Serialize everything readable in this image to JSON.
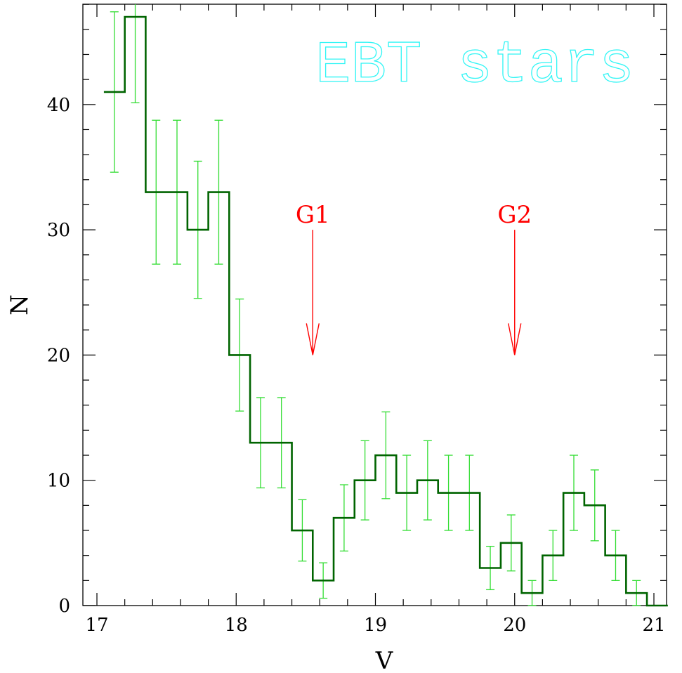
{
  "chart_data": {
    "type": "histogram",
    "title": "EBT stars",
    "xlabel": "V",
    "ylabel": "N",
    "xlim": [
      16.95,
      21.2
    ],
    "ylim": [
      0,
      48
    ],
    "x_ticks": [
      "17",
      "18",
      "19",
      "20",
      "21"
    ],
    "y_ticks": [
      "0",
      "10",
      "20",
      "30",
      "40"
    ],
    "bin_width": 0.15,
    "bins": [
      {
        "x_start": 17.05,
        "x_end": 17.2,
        "count": 41
      },
      {
        "x_start": 17.2,
        "x_end": 17.35,
        "count": 47
      },
      {
        "x_start": 17.35,
        "x_end": 17.5,
        "count": 33
      },
      {
        "x_start": 17.5,
        "x_end": 17.65,
        "count": 33
      },
      {
        "x_start": 17.65,
        "x_end": 17.8,
        "count": 30
      },
      {
        "x_start": 17.8,
        "x_end": 17.95,
        "count": 33
      },
      {
        "x_start": 17.95,
        "x_end": 18.1,
        "count": 20
      },
      {
        "x_start": 18.1,
        "x_end": 18.25,
        "count": 13
      },
      {
        "x_start": 18.25,
        "x_end": 18.4,
        "count": 13
      },
      {
        "x_start": 18.4,
        "x_end": 18.55,
        "count": 6
      },
      {
        "x_start": 18.55,
        "x_end": 18.7,
        "count": 2
      },
      {
        "x_start": 18.7,
        "x_end": 18.85,
        "count": 7
      },
      {
        "x_start": 18.85,
        "x_end": 19.0,
        "count": 10
      },
      {
        "x_start": 19.0,
        "x_end": 19.15,
        "count": 12
      },
      {
        "x_start": 19.15,
        "x_end": 19.3,
        "count": 9
      },
      {
        "x_start": 19.3,
        "x_end": 19.45,
        "count": 10
      },
      {
        "x_start": 19.45,
        "x_end": 19.6,
        "count": 9
      },
      {
        "x_start": 19.6,
        "x_end": 19.75,
        "count": 9
      },
      {
        "x_start": 19.75,
        "x_end": 19.9,
        "count": 3
      },
      {
        "x_start": 19.9,
        "x_end": 20.05,
        "count": 5
      },
      {
        "x_start": 20.05,
        "x_end": 20.2,
        "count": 1
      },
      {
        "x_start": 20.2,
        "x_end": 20.35,
        "count": 4
      },
      {
        "x_start": 20.35,
        "x_end": 20.5,
        "count": 9
      },
      {
        "x_start": 20.5,
        "x_end": 20.65,
        "count": 8
      },
      {
        "x_start": 20.65,
        "x_end": 20.8,
        "count": 4
      },
      {
        "x_start": 20.8,
        "x_end": 20.95,
        "count": 1
      },
      {
        "x_start": 20.95,
        "x_end": 21.1,
        "count": 0
      }
    ],
    "error_bars": "sqrt(N)",
    "annotations": [
      {
        "label": "G1",
        "x": 18.55,
        "arrow_from_y": 30,
        "arrow_to_y": 20
      },
      {
        "label": "G2",
        "x": 20.0,
        "arrow_from_y": 30,
        "arrow_to_y": 20
      }
    ],
    "colors": {
      "histogram": "#006400",
      "error_bars": "#33dd33",
      "title": "#33f5f5",
      "annotations": "#ff0000",
      "axes": "#000000"
    },
    "grid": false
  }
}
